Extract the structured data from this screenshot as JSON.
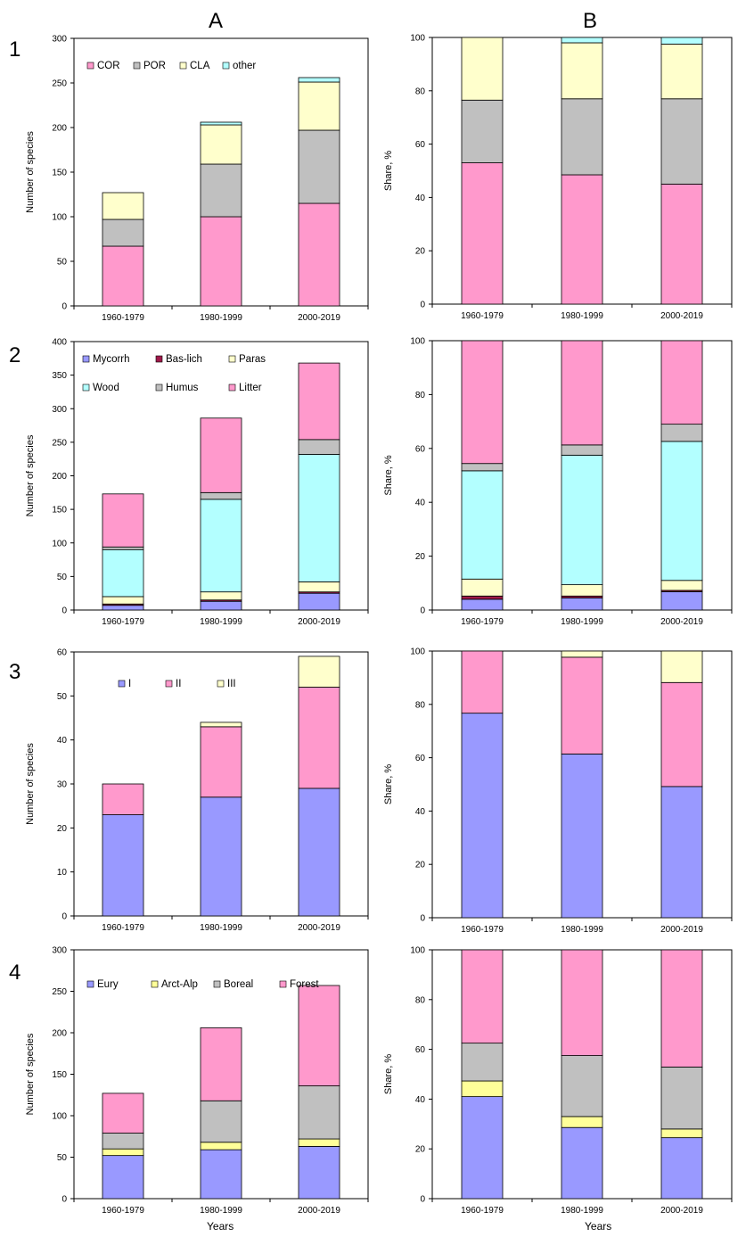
{
  "column_labels": [
    "A",
    "B"
  ],
  "row_labels": [
    "1",
    "2",
    "3",
    "4"
  ],
  "x_axis_title": "Years",
  "colors": {
    "pink": "#FF99CC",
    "gray": "#C0C0C0",
    "yellow": "#FFFFCC",
    "cyan": "#B3FFFF",
    "blue": "#9999FF",
    "darkred": "#A0194A",
    "bright_yellow": "#FFFF99"
  },
  "chart_data": [
    {
      "type": "bar",
      "stacked": true,
      "row": 1,
      "col": "A",
      "categories": [
        "1960-1979",
        "1980-1999",
        "2000-2019"
      ],
      "ylabel": "Number of species",
      "ylim": [
        0,
        300
      ],
      "yticks": [
        0,
        50,
        100,
        150,
        200,
        250,
        300
      ],
      "legend": "top-left inside, one row",
      "series": [
        {
          "name": "COR",
          "color": "#FF99CC",
          "values": [
            67,
            100,
            115
          ]
        },
        {
          "name": "POR",
          "color": "#C0C0C0",
          "values": [
            30,
            59,
            82
          ]
        },
        {
          "name": "CLA",
          "color": "#FFFFCC",
          "values": [
            30,
            44,
            54
          ]
        },
        {
          "name": "other",
          "color": "#B3FFFF",
          "values": [
            0,
            3,
            5
          ]
        }
      ]
    },
    {
      "type": "bar",
      "stacked": true,
      "row": 1,
      "col": "B",
      "categories": [
        "1960-1979",
        "1980-1999",
        "2000-2019"
      ],
      "ylabel": "Share, %",
      "ylim": [
        0,
        100
      ],
      "yticks": [
        0,
        20,
        40,
        60,
        80,
        100
      ],
      "series": [
        {
          "name": "COR",
          "color": "#FF99CC",
          "values": [
            53,
            48.5,
            45
          ]
        },
        {
          "name": "POR",
          "color": "#C0C0C0",
          "values": [
            23.5,
            28.5,
            32
          ]
        },
        {
          "name": "CLA",
          "color": "#FFFFCC",
          "values": [
            23.5,
            21,
            20.5
          ]
        },
        {
          "name": "other",
          "color": "#B3FFFF",
          "values": [
            0,
            2,
            2.5
          ]
        }
      ]
    },
    {
      "type": "bar",
      "stacked": true,
      "row": 2,
      "col": "A",
      "categories": [
        "1960-1979",
        "1980-1999",
        "2000-2019"
      ],
      "ylabel": "Number of species",
      "ylim": [
        0,
        400
      ],
      "yticks": [
        0,
        50,
        100,
        150,
        200,
        250,
        300,
        350,
        400
      ],
      "legend": "top inside, two rows",
      "series": [
        {
          "name": "Mycorrh",
          "color": "#9999FF",
          "values": [
            7,
            13,
            25
          ]
        },
        {
          "name": "Bas-lich",
          "color": "#A0194A",
          "values": [
            2,
            2,
            2
          ]
        },
        {
          "name": "Paras",
          "color": "#FFFFCC",
          "values": [
            11,
            12,
            15
          ]
        },
        {
          "name": "Wood",
          "color": "#B3FFFF",
          "values": [
            70,
            138,
            190
          ]
        },
        {
          "name": "Humus",
          "color": "#C0C0C0",
          "values": [
            4,
            10,
            22
          ]
        },
        {
          "name": "Litter",
          "color": "#FF99CC",
          "values": [
            79,
            111,
            114
          ]
        }
      ]
    },
    {
      "type": "bar",
      "stacked": true,
      "row": 2,
      "col": "B",
      "categories": [
        "1960-1979",
        "1980-1999",
        "2000-2019"
      ],
      "ylabel": "Share, %",
      "ylim": [
        0,
        100
      ],
      "yticks": [
        0,
        20,
        40,
        60,
        80,
        100
      ],
      "series": [
        {
          "name": "Mycorrh",
          "color": "#9999FF",
          "values": [
            4,
            4.5,
            6.8
          ]
        },
        {
          "name": "Bas-lich",
          "color": "#A0194A",
          "values": [
            1.2,
            0.7,
            0.5
          ]
        },
        {
          "name": "Paras",
          "color": "#FFFFCC",
          "values": [
            6.3,
            4.2,
            3.7
          ]
        },
        {
          "name": "Wood",
          "color": "#B3FFFF",
          "values": [
            40.2,
            48.1,
            51.6
          ]
        },
        {
          "name": "Humus",
          "color": "#C0C0C0",
          "values": [
            2.7,
            3.8,
            6.4
          ]
        },
        {
          "name": "Litter",
          "color": "#FF99CC",
          "values": [
            45.6,
            38.7,
            31
          ]
        }
      ]
    },
    {
      "type": "bar",
      "stacked": true,
      "row": 3,
      "col": "A",
      "categories": [
        "1960-1979",
        "1980-1999",
        "2000-2019"
      ],
      "ylabel": "Number of species",
      "ylim": [
        0,
        60
      ],
      "yticks": [
        0,
        10,
        20,
        30,
        40,
        50,
        60
      ],
      "legend": "top inside, one row",
      "series": [
        {
          "name": "I",
          "color": "#9999FF",
          "values": [
            23,
            27,
            29
          ]
        },
        {
          "name": "II",
          "color": "#FF99CC",
          "values": [
            7,
            16,
            23
          ]
        },
        {
          "name": "III",
          "color": "#FFFFCC",
          "values": [
            0,
            1,
            7
          ]
        }
      ]
    },
    {
      "type": "bar",
      "stacked": true,
      "row": 3,
      "col": "B",
      "categories": [
        "1960-1979",
        "1980-1999",
        "2000-2019"
      ],
      "ylabel": "Share, %",
      "ylim": [
        0,
        100
      ],
      "yticks": [
        0,
        20,
        40,
        60,
        80,
        100
      ],
      "series": [
        {
          "name": "I",
          "color": "#9999FF",
          "values": [
            76.7,
            61.4,
            49.2
          ]
        },
        {
          "name": "II",
          "color": "#FF99CC",
          "values": [
            23.3,
            36.3,
            39
          ]
        },
        {
          "name": "III",
          "color": "#FFFFCC",
          "values": [
            0,
            2.3,
            11.8
          ]
        }
      ]
    },
    {
      "type": "bar",
      "stacked": true,
      "row": 4,
      "col": "A",
      "categories": [
        "1960-1979",
        "1980-1999",
        "2000-2019"
      ],
      "ylabel": "Number of species",
      "xlabel": "Years",
      "ylim": [
        0,
        300
      ],
      "yticks": [
        0,
        50,
        100,
        150,
        200,
        250,
        300
      ],
      "legend": "top-left inside, one row",
      "series": [
        {
          "name": "Eury",
          "color": "#9999FF",
          "values": [
            52,
            59,
            63
          ]
        },
        {
          "name": "Arct-Alp",
          "color": "#FFFF99",
          "values": [
            8,
            9,
            9
          ]
        },
        {
          "name": "Boreal",
          "color": "#C0C0C0",
          "values": [
            19,
            50,
            64
          ]
        },
        {
          "name": "Forest",
          "color": "#FF99CC",
          "values": [
            48,
            88,
            121
          ]
        }
      ]
    },
    {
      "type": "bar",
      "stacked": true,
      "row": 4,
      "col": "B",
      "categories": [
        "1960-1979",
        "1980-1999",
        "2000-2019"
      ],
      "ylabel": "Share, %",
      "xlabel": "Years",
      "ylim": [
        0,
        100
      ],
      "yticks": [
        0,
        20,
        40,
        60,
        80,
        100
      ],
      "series": [
        {
          "name": "Eury",
          "color": "#9999FF",
          "values": [
            41,
            28.6,
            24.5
          ]
        },
        {
          "name": "Arct-Alp",
          "color": "#FFFF99",
          "values": [
            6.3,
            4.4,
            3.5
          ]
        },
        {
          "name": "Boreal",
          "color": "#C0C0C0",
          "values": [
            15.2,
            24.5,
            24.9
          ]
        },
        {
          "name": "Forest",
          "color": "#FF99CC",
          "values": [
            37.5,
            42.5,
            47.1
          ]
        }
      ]
    }
  ]
}
